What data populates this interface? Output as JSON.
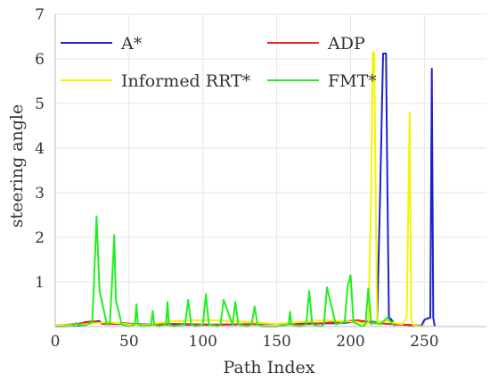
{
  "chart_data": {
    "type": "line",
    "xlabel": "Path Index",
    "ylabel": "steering angle",
    "xlim": [
      0,
      292
    ],
    "ylim": [
      0,
      7
    ],
    "xticks": [
      0,
      50,
      100,
      150,
      200,
      250
    ],
    "yticks": [
      1,
      2,
      3,
      4,
      5,
      6,
      7
    ],
    "grid": true,
    "legend_position": "top",
    "series": [
      {
        "name": "A*",
        "color": "#1f1fcc",
        "x": [
          0,
          18,
          20,
          30,
          32,
          60,
          100,
          130,
          150,
          180,
          195,
          200,
          210,
          218,
          220,
          222,
          223,
          224,
          225,
          226,
          227,
          230,
          248,
          250,
          252,
          254,
          255,
          256,
          257
        ],
        "y": [
          0.02,
          0.03,
          0.1,
          0.12,
          0.06,
          0.05,
          0.04,
          0.05,
          0.06,
          0.07,
          0.08,
          0.1,
          0.12,
          0.1,
          3.0,
          6.12,
          6.12,
          6.12,
          3.0,
          0.12,
          0.18,
          0.05,
          0.02,
          0.15,
          0.18,
          0.2,
          5.78,
          0.2,
          0.0
        ]
      },
      {
        "name": "ADP",
        "color": "#ee2222",
        "x": [
          0,
          15,
          25,
          35,
          45,
          60,
          80,
          110,
          140,
          170,
          190,
          205,
          215,
          230,
          245
        ],
        "y": [
          0.02,
          0.06,
          0.12,
          0.05,
          0.08,
          0.04,
          0.06,
          0.04,
          0.06,
          0.05,
          0.1,
          0.14,
          0.08,
          0.05,
          0.03
        ]
      },
      {
        "name": "Informed RRT*",
        "color": "#f5f500",
        "x": [
          0,
          20,
          35,
          50,
          60,
          70,
          80,
          95,
          110,
          130,
          150,
          165,
          180,
          195,
          205,
          210,
          212,
          214,
          215,
          216,
          217,
          218,
          220,
          225,
          230,
          235,
          238,
          240,
          241,
          242,
          244,
          250
        ],
        "y": [
          0.02,
          0.05,
          0.1,
          0.05,
          0.03,
          0.08,
          0.12,
          0.14,
          0.14,
          0.1,
          0.06,
          0.1,
          0.14,
          0.12,
          0.1,
          0.05,
          0.08,
          3.0,
          6.15,
          6.15,
          3.0,
          0.05,
          0.1,
          0.12,
          0.08,
          0.05,
          0.2,
          4.8,
          0.2,
          0.05,
          0.02,
          0.0
        ]
      },
      {
        "name": "FMT*",
        "color": "#22ee22",
        "x": [
          0,
          5,
          10,
          13,
          14,
          15,
          20,
          25,
          26,
          28,
          30,
          35,
          37,
          38,
          40,
          41,
          45,
          50,
          54,
          55,
          56,
          60,
          65,
          66,
          67,
          70,
          75,
          76,
          77,
          80,
          88,
          90,
          92,
          95,
          100,
          102,
          104,
          110,
          112,
          114,
          120,
          122,
          124,
          130,
          133,
          135,
          137,
          140,
          150,
          158,
          159,
          160,
          165,
          170,
          172,
          174,
          180,
          182,
          184,
          190,
          196,
          198,
          200,
          202,
          208,
          210,
          212,
          214,
          216,
          220,
          225,
          230
        ],
        "y": [
          0.0,
          0.0,
          0.01,
          0.05,
          0.08,
          0.05,
          0.02,
          0.1,
          0.8,
          2.47,
          0.8,
          0.05,
          0.08,
          0.7,
          2.05,
          0.6,
          0.05,
          0.0,
          0.05,
          0.5,
          0.05,
          0.0,
          0.05,
          0.35,
          0.05,
          0.0,
          0.05,
          0.55,
          0.05,
          0.0,
          0.05,
          0.6,
          0.05,
          0.0,
          0.05,
          0.73,
          0.05,
          0.0,
          0.05,
          0.6,
          0.05,
          0.55,
          0.05,
          0.0,
          0.05,
          0.45,
          0.05,
          0.0,
          0.0,
          0.05,
          0.33,
          0.05,
          0.0,
          0.05,
          0.8,
          0.05,
          0.0,
          0.05,
          0.88,
          0.05,
          0.1,
          0.9,
          1.15,
          0.1,
          0.0,
          0.05,
          0.85,
          0.05,
          0.1,
          0.05,
          0.2,
          0.0
        ]
      }
    ],
    "legend": [
      {
        "label": "A*",
        "color": "#1f1fcc"
      },
      {
        "label": "ADP",
        "color": "#ee2222"
      },
      {
        "label": "Informed RRT*",
        "color": "#f5f500"
      },
      {
        "label": "FMT*",
        "color": "#22ee22"
      }
    ]
  }
}
